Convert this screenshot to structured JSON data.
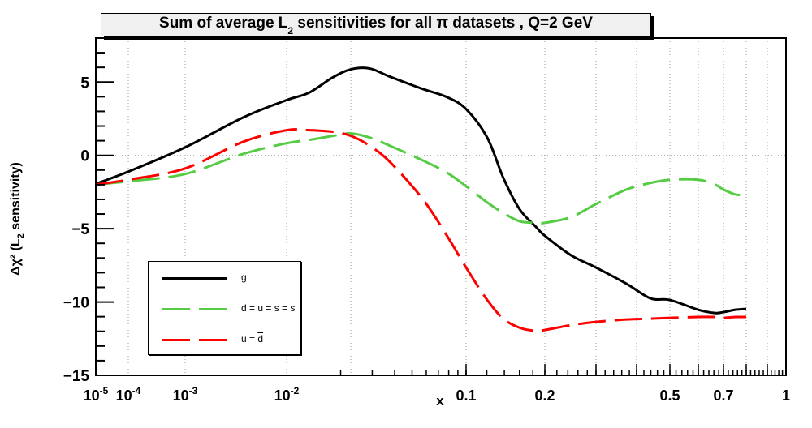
{
  "chart_data": {
    "type": "line",
    "title": "Sum of average L₂ sensitivities for all π datasets , Q=2 GeV",
    "title_parts": {
      "pre": "Sum of average L",
      "sub": "2",
      "post": " sensitivities for all π datasets , Q=2 GeV"
    },
    "xlabel": "x",
    "ylabel_parts": {
      "pre": "Δχ² (L",
      "sub": "2",
      "post": " sensitivity)"
    },
    "xscale": "log(1/x)-hybrid",
    "xlim": [
      1e-05,
      1
    ],
    "ylim": [
      -15,
      8
    ],
    "grid": true,
    "x_ticks": [
      {
        "v": 1e-05,
        "base": "10",
        "exp": "-5"
      },
      {
        "v": 0.0001,
        "base": "10",
        "exp": "-4"
      },
      {
        "v": 0.001,
        "base": "10",
        "exp": "-3"
      },
      {
        "v": 0.01,
        "base": "10",
        "exp": "-2"
      },
      {
        "v": 0.1,
        "base": "0.1",
        "exp": ""
      },
      {
        "v": 0.2,
        "base": "0.2",
        "exp": ""
      },
      {
        "v": 0.5,
        "base": "0.5",
        "exp": ""
      },
      {
        "v": 0.7,
        "base": "0.7",
        "exp": ""
      },
      {
        "v": 1,
        "base": "1",
        "exp": ""
      }
    ],
    "x_gridlines": [
      0.0001,
      0.001,
      0.01,
      0.0228,
      0.1,
      0.2,
      0.3,
      0.4,
      0.5,
      0.6,
      0.7,
      0.8,
      0.9
    ],
    "y_ticks": [
      {
        "v": 5,
        "label": "5"
      },
      {
        "v": 0,
        "label": "0"
      },
      {
        "v": -5,
        "label": "−5"
      },
      {
        "v": -10,
        "label": "−10"
      },
      {
        "v": -15,
        "label": "−15"
      }
    ],
    "y_gridlines": [
      0
    ],
    "legend": {
      "placement": "bottom-left"
    },
    "series": [
      {
        "name": "g",
        "label": "g",
        "color": "#000000",
        "style": "solid",
        "x": [
          1e-05,
          0.0001,
          0.001,
          0.00377,
          0.01,
          0.0133,
          0.0181,
          0.0228,
          0.029,
          0.0376,
          0.057,
          0.0778,
          0.1,
          0.1204,
          0.1389,
          0.16,
          0.185,
          0.2,
          0.246,
          0.3,
          0.372,
          0.439,
          0.5,
          0.6,
          0.664,
          0.7,
          0.75,
          0.8
        ],
        "y": [
          -1.94,
          -1.11,
          0.55,
          2.6,
          3.77,
          4.27,
          5.32,
          5.87,
          5.93,
          5.37,
          4.54,
          3.99,
          3.16,
          1.22,
          -1.55,
          -3.66,
          -4.88,
          -5.48,
          -6.81,
          -7.65,
          -8.75,
          -9.75,
          -9.86,
          -10.53,
          -10.75,
          -10.69,
          -10.53,
          -10.47
        ]
      },
      {
        "name": "d = ū = s = s̄",
        "label_parts": [
          "d = ",
          "u",
          " = s = ",
          "s"
        ],
        "color": "#55cc44",
        "style": "dashed",
        "x": [
          1e-05,
          0.0001,
          0.001,
          0.00377,
          0.01,
          0.0133,
          0.0181,
          0.0228,
          0.029,
          0.0376,
          0.057,
          0.0778,
          0.1,
          0.1204,
          0.1389,
          0.16,
          0.185,
          0.2,
          0.246,
          0.3,
          0.372,
          0.439,
          0.5,
          0.6,
          0.664,
          0.7,
          0.75,
          0.8
        ],
        "y": [
          -1.99,
          -1.77,
          -1.27,
          0.11,
          0.83,
          1.05,
          1.33,
          1.5,
          1.22,
          0.66,
          -0.33,
          -1.16,
          -2.1,
          -3.21,
          -3.93,
          -4.49,
          -4.6,
          -4.6,
          -4.21,
          -3.32,
          -2.33,
          -1.88,
          -1.66,
          -1.66,
          -1.99,
          -2.33,
          -2.66,
          -2.71
        ]
      },
      {
        "name": "u = d̄",
        "label_parts": [
          "u = ",
          "d"
        ],
        "color": "#ff0000",
        "style": "dashed",
        "x": [
          1e-05,
          0.0001,
          0.001,
          0.00377,
          0.01,
          0.0133,
          0.0181,
          0.0228,
          0.029,
          0.0376,
          0.057,
          0.0778,
          0.1,
          0.1204,
          0.1389,
          0.16,
          0.185,
          0.2,
          0.246,
          0.3,
          0.372,
          0.439,
          0.5,
          0.6,
          0.664,
          0.7,
          0.75,
          0.8
        ],
        "y": [
          -1.99,
          -1.66,
          -0.89,
          0.94,
          1.72,
          1.72,
          1.61,
          1.33,
          0.66,
          -0.44,
          -2.94,
          -5.43,
          -7.65,
          -9.86,
          -11.14,
          -11.75,
          -11.97,
          -11.91,
          -11.58,
          -11.36,
          -11.19,
          -11.14,
          -11.08,
          -11.02,
          -11.02,
          -11.08,
          -11.02,
          -11.02
        ]
      }
    ]
  }
}
